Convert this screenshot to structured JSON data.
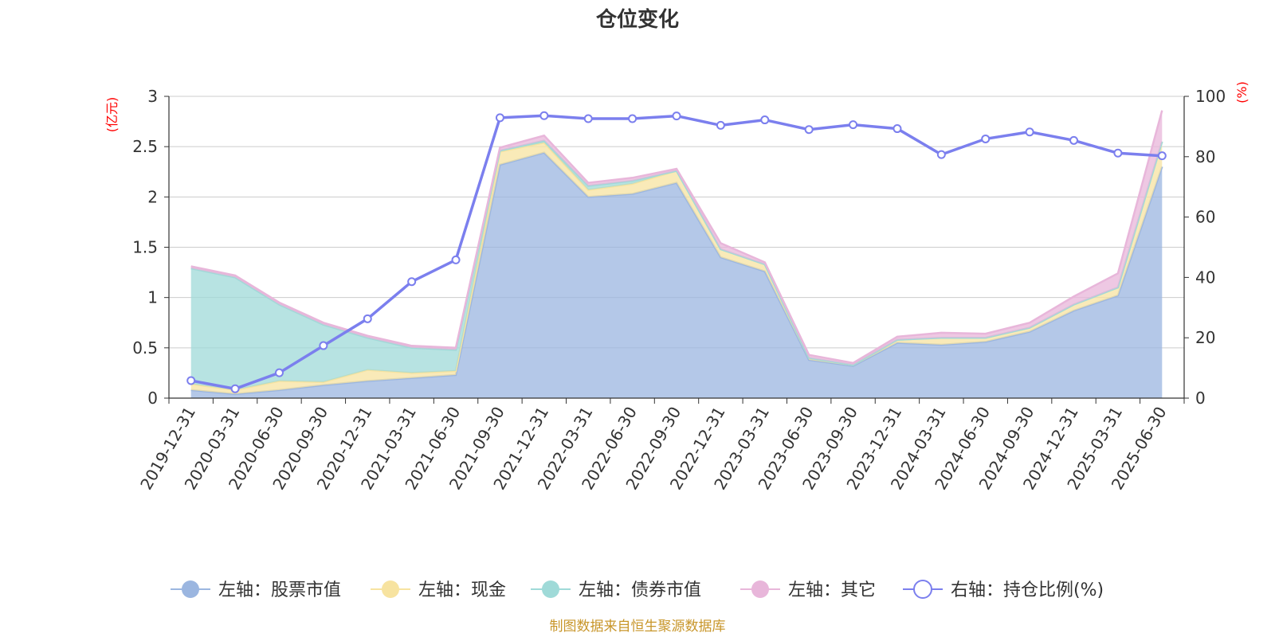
{
  "chart_data": {
    "type": "area",
    "title": "仓位变化",
    "left_unit": "(亿元)",
    "right_unit": "(%)",
    "left_ylim": [
      0,
      3
    ],
    "left_ticks": [
      "0",
      "0.5",
      "1",
      "1.5",
      "2",
      "2.5",
      "3"
    ],
    "right_ylim": [
      0,
      100
    ],
    "right_ticks": [
      "0",
      "20",
      "40",
      "60",
      "80",
      "100"
    ],
    "grid": true,
    "legend_position": "bottom",
    "categories": [
      "2019-12-31",
      "2020-03-31",
      "2020-06-30",
      "2020-09-30",
      "2020-12-31",
      "2021-03-31",
      "2021-06-30",
      "2021-09-30",
      "2021-12-31",
      "2022-03-31",
      "2022-06-30",
      "2022-09-30",
      "2022-12-31",
      "2023-03-31",
      "2023-06-30",
      "2023-09-30",
      "2023-12-31",
      "2024-03-31",
      "2024-06-30",
      "2024-09-30",
      "2024-12-31",
      "2025-03-31",
      "2025-06-30"
    ],
    "series": [
      {
        "name": "左轴：股票市值",
        "axis": "left",
        "color": "#9bb6e0",
        "values": [
          0.08,
          0.04,
          0.08,
          0.13,
          0.17,
          0.2,
          0.23,
          2.32,
          2.44,
          2.0,
          2.03,
          2.14,
          1.4,
          1.26,
          0.38,
          0.32,
          0.55,
          0.53,
          0.56,
          0.66,
          0.87,
          1.02,
          2.3
        ]
      },
      {
        "name": "左轴：现金",
        "axis": "left",
        "color": "#f7e3a0",
        "values": [
          0.06,
          0.04,
          0.09,
          0.03,
          0.11,
          0.05,
          0.04,
          0.13,
          0.1,
          0.07,
          0.1,
          0.12,
          0.08,
          0.07,
          0.02,
          0.01,
          0.03,
          0.07,
          0.04,
          0.04,
          0.06,
          0.08,
          0.25
        ]
      },
      {
        "name": "左轴：债券市值",
        "axis": "left",
        "color": "#9fdad8",
        "values": [
          1.15,
          1.12,
          0.76,
          0.57,
          0.32,
          0.25,
          0.21,
          0.01,
          0.02,
          0.04,
          0.03,
          0.0,
          0.0,
          0.0,
          0.0,
          0.0,
          0.0,
          0.0,
          0.0,
          0.0,
          0.0,
          0.0,
          0.0
        ]
      },
      {
        "name": "左轴：其它",
        "axis": "left",
        "color": "#e8b6da",
        "values": [
          0.02,
          0.02,
          0.02,
          0.02,
          0.02,
          0.02,
          0.02,
          0.03,
          0.05,
          0.03,
          0.03,
          0.02,
          0.06,
          0.02,
          0.03,
          0.02,
          0.03,
          0.05,
          0.04,
          0.05,
          0.08,
          0.14,
          0.31
        ]
      },
      {
        "name": "右轴：持仓比例(%)",
        "axis": "right",
        "color": "#7b7fee",
        "values": [
          5.8,
          3.1,
          8.4,
          17.4,
          26.3,
          38.6,
          45.8,
          92.9,
          93.6,
          92.6,
          92.6,
          93.5,
          90.4,
          92.2,
          89.0,
          90.6,
          89.3,
          80.7,
          85.9,
          88.2,
          85.4,
          81.2,
          80.3
        ]
      }
    ]
  },
  "source_note": "制图数据来自恒生聚源数据库"
}
